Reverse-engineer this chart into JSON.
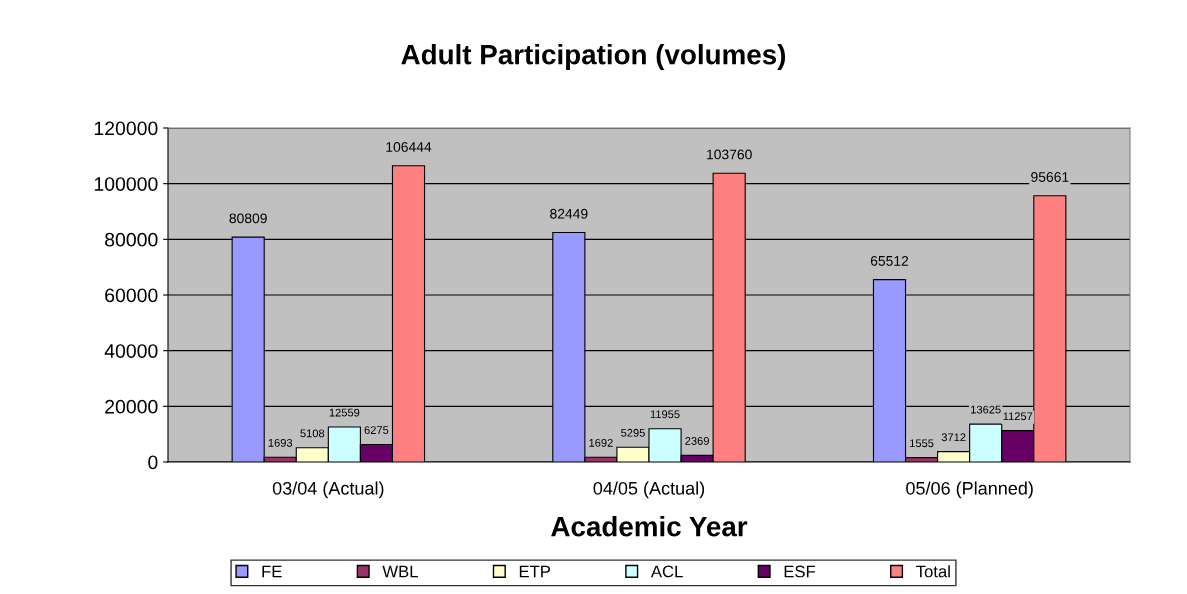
{
  "chart_data": {
    "type": "bar",
    "title": "Adult Participation (volumes)",
    "xlabel": "Academic Year",
    "categories": [
      "03/04 (Actual)",
      "04/05 (Actual)",
      "05/06 (Planned)"
    ],
    "series": [
      {
        "name": "FE",
        "color": "#9999ff",
        "values": [
          80809,
          82449,
          65512
        ]
      },
      {
        "name": "WBL",
        "color": "#993366",
        "values": [
          1693,
          1692,
          1555
        ]
      },
      {
        "name": "ETP",
        "color": "#ffffcc",
        "values": [
          5108,
          5295,
          3712
        ]
      },
      {
        "name": "ACL",
        "color": "#ccffff",
        "values": [
          12559,
          11955,
          13625
        ]
      },
      {
        "name": "ESF",
        "color": "#660066",
        "values": [
          6275,
          2369,
          11257
        ]
      },
      {
        "name": "Total",
        "color": "#ff8080",
        "values": [
          106444,
          103760,
          95661
        ]
      }
    ],
    "ylim": [
      0,
      120000
    ],
    "yticks": [
      0,
      20000,
      40000,
      60000,
      80000,
      100000,
      120000
    ],
    "grid": "y",
    "legend": "bottom",
    "data_labels": true
  }
}
